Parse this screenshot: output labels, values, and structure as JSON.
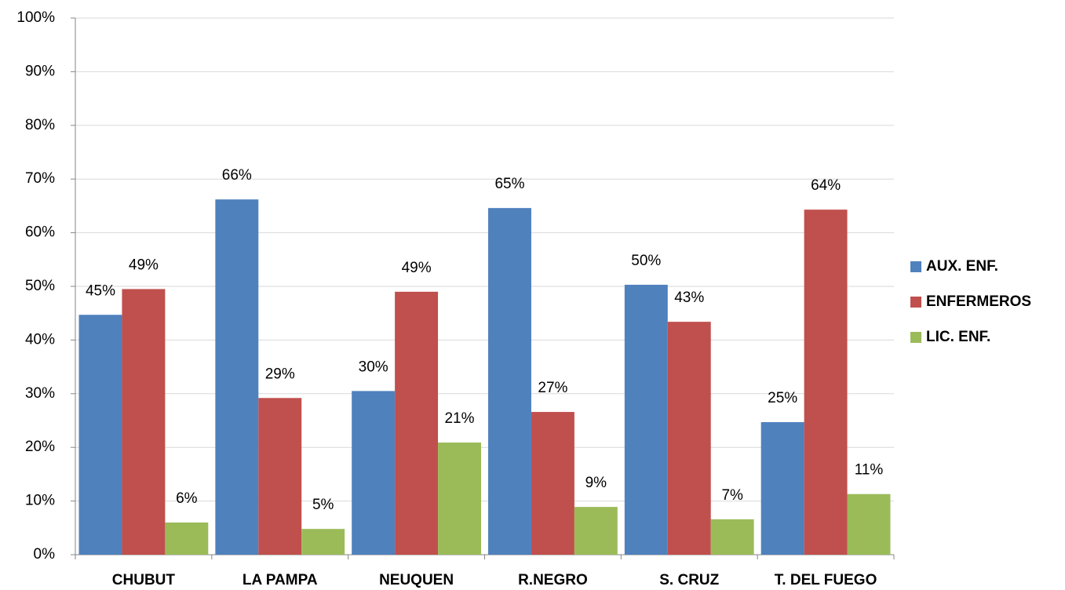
{
  "chart_data": {
    "type": "bar",
    "categories": [
      "CHUBUT",
      "LA PAMPA",
      "NEUQUEN",
      "R.NEGRO",
      "S. CRUZ",
      "T. DEL FUEGO"
    ],
    "series": [
      {
        "name": "AUX. ENF.",
        "color": "#4f81bd",
        "values": [
          44.7,
          66.2,
          30.5,
          64.6,
          50.3,
          24.7
        ],
        "value_labels": [
          "45%",
          "66%",
          "30%",
          "65%",
          "50%",
          "25%"
        ]
      },
      {
        "name": "ENFERMEROS",
        "color": "#c0504d",
        "values": [
          49.5,
          29.2,
          49.0,
          26.6,
          43.4,
          64.3
        ],
        "value_labels": [
          "49%",
          "29%",
          "49%",
          "27%",
          "43%",
          "64%"
        ]
      },
      {
        "name": "LIC. ENF.",
        "color": "#9bbb59",
        "values": [
          6.0,
          4.8,
          20.9,
          8.9,
          6.6,
          11.3
        ],
        "value_labels": [
          "6%",
          "5%",
          "21%",
          "9%",
          "7%",
          "11%"
        ]
      }
    ],
    "ylim": [
      0,
      100
    ],
    "yticks": [
      {
        "value": 0,
        "label": "0%"
      },
      {
        "value": 10,
        "label": "10%"
      },
      {
        "value": 20,
        "label": "20%"
      },
      {
        "value": 30,
        "label": "30%"
      },
      {
        "value": 40,
        "label": "40%"
      },
      {
        "value": 50,
        "label": "50%"
      },
      {
        "value": 60,
        "label": "60%"
      },
      {
        "value": 70,
        "label": "70%"
      },
      {
        "value": 80,
        "label": "80%"
      },
      {
        "value": 90,
        "label": "90%"
      },
      {
        "value": 100,
        "label": "100%"
      }
    ],
    "grid": true,
    "legend": "right"
  }
}
